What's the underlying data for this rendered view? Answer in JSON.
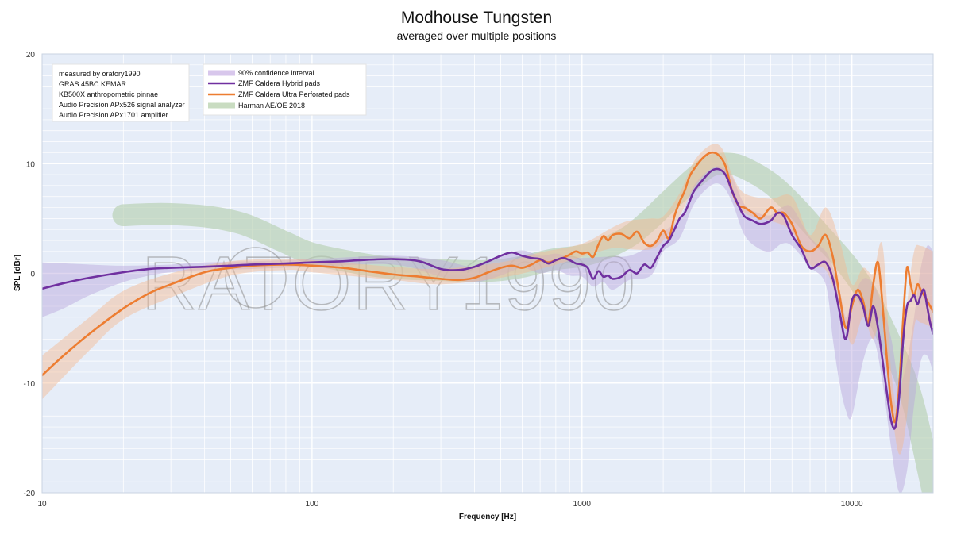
{
  "chart_data": {
    "type": "line",
    "title": "Modhouse Tungsten",
    "subtitle": "averaged over multiple positions",
    "xlabel": "Frequency [Hz]",
    "ylabel": "SPL [dBr]",
    "xscale": "log",
    "xlim": [
      10,
      20000
    ],
    "ylim": [
      -20,
      20
    ],
    "x_tick_labels": [
      {
        "value": 10,
        "label": "10"
      },
      {
        "value": 100,
        "label": "100"
      },
      {
        "value": 1000,
        "label": "1000"
      },
      {
        "value": 10000,
        "label": "10000"
      }
    ],
    "y_tick_labels": [
      {
        "value": 20,
        "label": "20"
      },
      {
        "value": 10,
        "label": "10"
      },
      {
        "value": 0,
        "label": "0"
      },
      {
        "value": -10,
        "label": "-10"
      },
      {
        "value": -20,
        "label": "-20"
      }
    ],
    "grid": true,
    "watermark": "RATORY1990",
    "measurement_notes": [
      "measured by oratory1990",
      "GRAS 45BC KEMAR",
      "KB500X anthropometric pinnae",
      "Audio Precision APx526 signal analyzer",
      "Audio Precision APx1701 amplifier"
    ],
    "legend": [
      {
        "label": "90% confidence interval",
        "color": "#d8c7ec",
        "style": "band"
      },
      {
        "label": "ZMF Caldera Hybrid pads",
        "color": "#7030a0",
        "style": "line"
      },
      {
        "label": "ZMF Caldera Ultra Perforated pads",
        "color": "#ed7d31",
        "style": "line"
      },
      {
        "label": "Harman AE/OE 2018",
        "color": "#c9dcc1",
        "style": "band"
      }
    ],
    "series": [
      {
        "name": "Harman AE/OE 2018",
        "color": "#b7cfb0",
        "x": [
          20,
          25,
          30,
          40,
          50,
          60,
          80,
          100,
          150,
          200,
          300,
          400,
          500,
          600,
          700,
          800,
          1000,
          1200,
          1500,
          1800,
          2000,
          2300,
          2600,
          3000,
          3500,
          4000,
          5000,
          6000,
          7000,
          8000,
          9000,
          10000,
          11000,
          12000,
          13000,
          14000,
          15000,
          16000,
          17000,
          18000,
          19000,
          20000
        ],
        "y": [
          5.3,
          5.4,
          5.4,
          5.2,
          4.8,
          4.2,
          2.8,
          1.8,
          0.9,
          0.5,
          0.3,
          0.2,
          0.3,
          0.6,
          1.0,
          1.3,
          1.6,
          2.2,
          3.4,
          5.0,
          6.1,
          7.5,
          8.7,
          9.8,
          10.0,
          9.6,
          8.2,
          6.4,
          4.6,
          3.0,
          1.6,
          0.2,
          -1.3,
          -3.0,
          -4.8,
          -6.5,
          -8.2,
          -10.0,
          -12.2,
          -14.8,
          -17.5,
          -20.0
        ],
        "band_width": 1.0
      },
      {
        "name": "90% confidence interval (ZMF Caldera Hybrid pads)",
        "color": "#b9a3dc",
        "lower_x": [
          10,
          12,
          15,
          20,
          25,
          30,
          40,
          60,
          100,
          200,
          300,
          400,
          500,
          600,
          700,
          800,
          900,
          1000,
          1100,
          1200,
          1300,
          1500,
          1800,
          2000,
          2300,
          2600,
          3000,
          3300,
          3600,
          4000,
          4500,
          5000,
          5500,
          6000,
          7000,
          8000,
          8500,
          9000,
          9500,
          10000,
          11000,
          12000,
          13000,
          14000,
          15000,
          16000,
          17000,
          18000,
          19000,
          20000
        ],
        "lower_y": [
          -4.0,
          -3.2,
          -2.0,
          -0.8,
          -0.2,
          0.1,
          0.3,
          0.4,
          0.6,
          0.8,
          -0.3,
          -0.8,
          -0.2,
          0.5,
          0.0,
          0.3,
          -0.2,
          -0.3,
          -1.2,
          -0.8,
          -1.5,
          -0.6,
          -0.2,
          2.0,
          3.2,
          6.3,
          8.0,
          8.0,
          6.5,
          3.5,
          2.3,
          2.0,
          2.7,
          2.5,
          0.6,
          -1.0,
          -6.0,
          -10.0,
          -12.5,
          -13.0,
          -8.0,
          -6.0,
          -10.0,
          -16.0,
          -20.0,
          -18.0,
          -12.0,
          -8.0,
          -7.5,
          -9.0
        ],
        "upper_x": [
          10,
          15,
          20,
          30,
          40,
          60,
          100,
          200,
          300,
          400,
          500,
          600,
          700,
          800,
          900,
          1000,
          1200,
          1500,
          1800,
          2000,
          2300,
          2600,
          3000,
          3300,
          3600,
          4000,
          4500,
          5000,
          5500,
          6000,
          7000,
          8000,
          8500,
          9000,
          9500,
          10000,
          11000,
          12000,
          13000,
          14000,
          15000,
          16000,
          17000,
          18000,
          19000,
          20000
        ],
        "upper_y": [
          1.0,
          0.8,
          0.7,
          0.8,
          1.0,
          1.1,
          1.3,
          1.6,
          1.2,
          0.6,
          1.6,
          2.1,
          1.6,
          1.8,
          1.5,
          1.4,
          1.5,
          1.6,
          2.6,
          3.8,
          5.0,
          8.0,
          9.5,
          9.7,
          8.8,
          6.3,
          5.5,
          5.3,
          6.0,
          6.0,
          3.3,
          2.0,
          0.5,
          -1.5,
          -4.0,
          -2.5,
          -0.5,
          -1.0,
          -3.0,
          -6.0,
          -10.0,
          -8.0,
          -4.0,
          0.5,
          2.5,
          2.0
        ]
      },
      {
        "name": "90% confidence interval (ZMF Caldera Ultra Perforated pads)",
        "color": "#f4b990",
        "lower_x": [
          10,
          15,
          20,
          30,
          50,
          80,
          100,
          200,
          300,
          500,
          700,
          1000,
          1300,
          1500,
          1800,
          2000,
          2300,
          2600,
          3000,
          3300,
          3600,
          4000,
          5000,
          6000,
          7000,
          8000,
          9000,
          10000,
          11000,
          12000,
          13000,
          14000,
          15000,
          16000,
          17000,
          18000,
          20000
        ],
        "lower_y": [
          -11.5,
          -7.0,
          -4.2,
          -2.2,
          -0.2,
          0.3,
          0.1,
          -0.6,
          -1.0,
          -0.4,
          0.4,
          1.5,
          2.3,
          2.2,
          2.2,
          3.0,
          5.2,
          7.8,
          9.5,
          9.3,
          7.2,
          5.5,
          4.8,
          3.8,
          0.8,
          0.3,
          -3.0,
          -6.5,
          -4.0,
          -6.0,
          -4.0,
          -12.0,
          -16.5,
          -13.0,
          -5.0,
          -4.5,
          -5.0
        ],
        "upper_x": [
          10,
          15,
          20,
          30,
          50,
          80,
          100,
          200,
          300,
          500,
          700,
          1000,
          1300,
          1500,
          1800,
          2000,
          2300,
          2600,
          3000,
          3300,
          3600,
          4000,
          5000,
          6000,
          7000,
          8000,
          9000,
          10000,
          11000,
          12000,
          13000,
          14000,
          15000,
          16000,
          17000,
          18000,
          20000
        ],
        "upper_y": [
          -7.5,
          -4.0,
          -1.6,
          0.0,
          1.1,
          1.3,
          1.2,
          0.6,
          0.4,
          1.0,
          1.9,
          2.7,
          4.2,
          4.8,
          5.0,
          5.2,
          7.3,
          10.2,
          11.7,
          11.4,
          9.0,
          7.3,
          6.8,
          7.0,
          3.5,
          6.0,
          3.0,
          -1.0,
          0.5,
          0.0,
          2.5,
          -9.0,
          -12.5,
          -3.0,
          2.0,
          2.5,
          2.0
        ]
      },
      {
        "name": "ZMF Caldera Ultra Perforated pads",
        "color": "#ed7d31",
        "x": [
          10,
          12,
          15,
          20,
          25,
          30,
          40,
          50,
          60,
          80,
          100,
          130,
          150,
          200,
          250,
          300,
          350,
          400,
          450,
          500,
          550,
          600,
          650,
          700,
          750,
          800,
          850,
          900,
          950,
          1000,
          1050,
          1100,
          1150,
          1200,
          1250,
          1300,
          1400,
          1500,
          1600,
          1700,
          1800,
          1900,
          2000,
          2100,
          2200,
          2300,
          2400,
          2500,
          2600,
          2800,
          3000,
          3200,
          3400,
          3600,
          3800,
          4000,
          4300,
          4600,
          5000,
          5300,
          5600,
          6000,
          6500,
          7000,
          7500,
          8000,
          8500,
          9000,
          9500,
          10000,
          10500,
          11000,
          11500,
          12000,
          12500,
          13000,
          13500,
          14000,
          14500,
          15000,
          15500,
          16000,
          16500,
          17000,
          17500,
          18000,
          18500,
          19000,
          19500,
          20000
        ],
        "y": [
          -9.3,
          -7.5,
          -5.5,
          -3.2,
          -1.8,
          -1.0,
          0.1,
          0.5,
          0.7,
          0.8,
          0.7,
          0.5,
          0.3,
          -0.1,
          -0.3,
          -0.5,
          -0.6,
          -0.4,
          0.1,
          0.5,
          0.7,
          0.5,
          0.8,
          1.2,
          1.0,
          1.2,
          1.4,
          1.7,
          2.0,
          1.8,
          1.9,
          1.5,
          2.6,
          3.4,
          3.0,
          3.5,
          3.6,
          3.2,
          3.8,
          2.8,
          2.5,
          3.0,
          3.9,
          3.2,
          5.2,
          6.5,
          7.5,
          8.8,
          9.5,
          10.5,
          11.0,
          10.8,
          9.8,
          7.5,
          6.2,
          6.0,
          5.5,
          5.0,
          6.0,
          5.5,
          5.5,
          4.5,
          2.5,
          2.0,
          2.5,
          3.5,
          1.5,
          -2.0,
          -5.0,
          -3.0,
          -1.5,
          -2.5,
          -4.5,
          -1.0,
          1.0,
          -3.0,
          -8.0,
          -12.0,
          -13.5,
          -10.0,
          -4.0,
          0.5,
          -1.0,
          -2.0,
          -1.0,
          -1.5,
          -2.0,
          -2.5,
          -3.0,
          -3.5
        ]
      },
      {
        "name": "ZMF Caldera Hybrid pads",
        "color": "#7030a0",
        "x": [
          10,
          12,
          15,
          20,
          25,
          30,
          40,
          50,
          60,
          80,
          100,
          130,
          150,
          200,
          250,
          300,
          350,
          400,
          450,
          500,
          550,
          600,
          650,
          700,
          750,
          800,
          850,
          900,
          950,
          1000,
          1050,
          1100,
          1150,
          1200,
          1250,
          1300,
          1400,
          1500,
          1600,
          1700,
          1800,
          1900,
          2000,
          2100,
          2200,
          2300,
          2400,
          2500,
          2600,
          2800,
          3000,
          3200,
          3400,
          3600,
          3800,
          4000,
          4300,
          4600,
          5000,
          5300,
          5600,
          6000,
          6500,
          7000,
          7500,
          8000,
          8500,
          9000,
          9500,
          10000,
          10500,
          11000,
          11500,
          12000,
          12500,
          13000,
          13500,
          14000,
          14500,
          15000,
          15500,
          16000,
          16500,
          17000,
          17500,
          18000,
          18500,
          19000,
          19500,
          20000
        ],
        "y": [
          -1.4,
          -0.9,
          -0.4,
          0.1,
          0.4,
          0.5,
          0.6,
          0.7,
          0.8,
          0.9,
          1.0,
          1.1,
          1.2,
          1.3,
          1.1,
          0.4,
          0.3,
          0.6,
          1.1,
          1.6,
          1.9,
          1.6,
          1.4,
          1.3,
          0.9,
          1.2,
          1.4,
          1.2,
          0.9,
          0.8,
          0.5,
          -0.5,
          0.2,
          -0.3,
          -0.2,
          -0.5,
          -0.3,
          0.3,
          0.0,
          0.8,
          0.5,
          1.5,
          2.5,
          3.0,
          4.0,
          5.0,
          5.5,
          6.5,
          7.5,
          8.5,
          9.3,
          9.5,
          9.0,
          7.5,
          6.2,
          5.2,
          4.8,
          4.5,
          4.8,
          5.5,
          5.2,
          3.5,
          2.2,
          0.5,
          0.8,
          1.0,
          -0.5,
          -3.5,
          -6.0,
          -2.5,
          -2.0,
          -3.0,
          -4.8,
          -3.0,
          -5.0,
          -8.0,
          -11.0,
          -13.5,
          -14.0,
          -11.0,
          -6.0,
          -3.0,
          -2.5,
          -2.0,
          -2.8,
          -2.0,
          -1.5,
          -3.0,
          -4.5,
          -5.5
        ]
      }
    ]
  }
}
